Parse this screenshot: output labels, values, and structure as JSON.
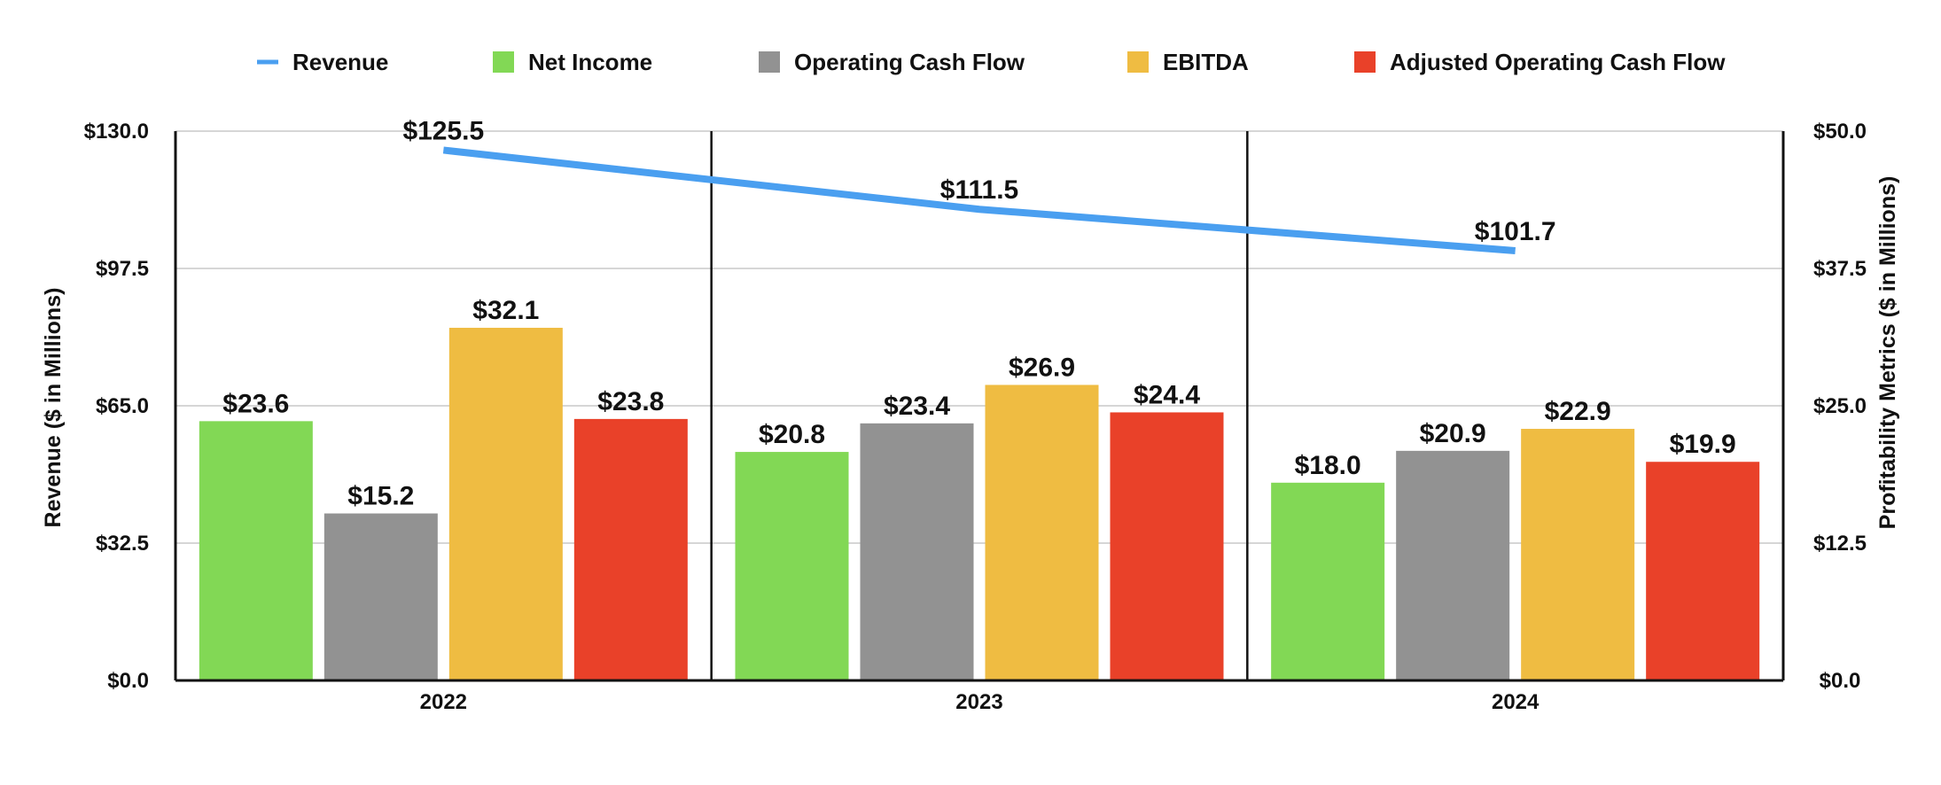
{
  "chart_data": {
    "type": "bar",
    "categories": [
      "2022",
      "2023",
      "2024"
    ],
    "line_series": {
      "name": "Revenue",
      "axis": "left",
      "values": [
        125.5,
        111.5,
        101.7
      ],
      "labels": [
        "$125.5",
        "$111.5",
        "$101.7"
      ],
      "color": "#4a9ff0"
    },
    "series": [
      {
        "name": "Net Income",
        "axis": "right",
        "values": [
          23.6,
          20.8,
          18.0
        ],
        "labels": [
          "$23.6",
          "$20.8",
          "$18.0"
        ],
        "color": "#82d855"
      },
      {
        "name": "Operating Cash Flow",
        "axis": "right",
        "values": [
          15.2,
          23.4,
          20.9
        ],
        "labels": [
          "$15.2",
          "$23.4",
          "$20.9"
        ],
        "color": "#929292"
      },
      {
        "name": "EBITDA",
        "axis": "right",
        "values": [
          32.1,
          26.9,
          22.9
        ],
        "labels": [
          "$32.1",
          "$26.9",
          "$22.9"
        ],
        "color": "#efbc42"
      },
      {
        "name": "Adjusted Operating Cash Flow",
        "axis": "right",
        "values": [
          23.8,
          24.4,
          19.9
        ],
        "labels": [
          "$23.8",
          "$24.4",
          "$19.9"
        ],
        "color": "#e94129"
      }
    ],
    "ylabel_left": "Revenue ($ in Millions)",
    "ylabel_right": "Profitability Metrics ($ in Millions)",
    "ylim_left": [
      0,
      130
    ],
    "ylim_right": [
      0,
      50
    ],
    "yticks_left": [
      "$0.0",
      "$32.5",
      "$65.0",
      "$97.5",
      "$130.0"
    ],
    "yticks_right": [
      "$0.0",
      "$12.5",
      "$25.0",
      "$37.5",
      "$50.0"
    ],
    "grid": true,
    "legend_position": "top-center"
  }
}
